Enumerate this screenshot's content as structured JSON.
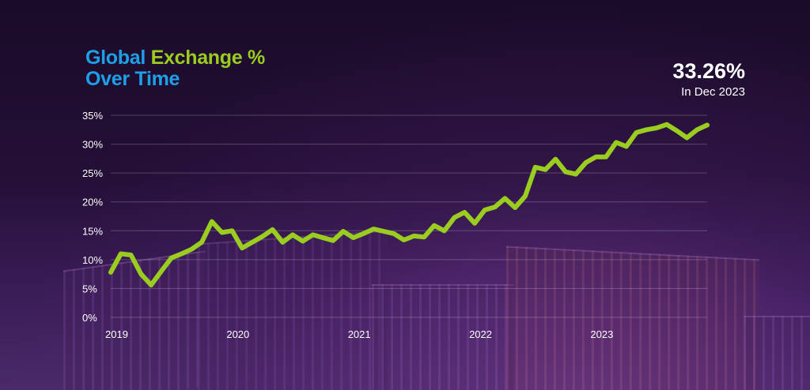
{
  "title": {
    "part1": "Global",
    "part2": "Exchange %",
    "part3": "Over Time"
  },
  "highlight": {
    "value": "33.26%",
    "label": "In Dec 2023"
  },
  "colors": {
    "title_blue": "#1ea0e8",
    "line": "#9acd1f",
    "background": "#1c0c2b"
  },
  "chart_data": {
    "type": "line",
    "title": "Global Exchange % Over Time",
    "xlabel": "",
    "ylabel": "",
    "ylim": [
      0,
      35
    ],
    "y_ticks": [
      "0%",
      "5%",
      "10%",
      "15%",
      "20%",
      "25%",
      "30%",
      "35%"
    ],
    "x_ticks": [
      "2019",
      "2020",
      "2021",
      "2022",
      "2023"
    ],
    "grid": "horizontal",
    "series": [
      {
        "values": [
          7.8,
          11.0,
          10.8,
          7.5,
          5.6,
          8.0,
          10.3,
          11.0,
          11.8,
          13.0,
          16.6,
          14.7,
          15.0,
          12.0,
          13.0,
          14.0,
          15.2,
          13.0,
          14.3,
          13.2,
          14.3,
          13.8,
          13.3,
          14.9,
          13.8,
          14.5,
          15.3,
          14.9,
          14.5,
          13.4,
          14.1,
          13.9,
          15.9,
          15.0,
          17.3,
          18.2,
          16.3,
          18.6,
          19.1,
          20.6,
          19.0,
          21.0,
          26.0,
          25.6,
          27.4,
          25.2,
          24.8,
          26.8,
          27.8,
          27.8,
          30.3,
          29.6,
          32.0,
          32.5,
          32.8,
          33.4,
          32.3,
          31.1,
          32.5,
          33.3
        ]
      }
    ]
  }
}
